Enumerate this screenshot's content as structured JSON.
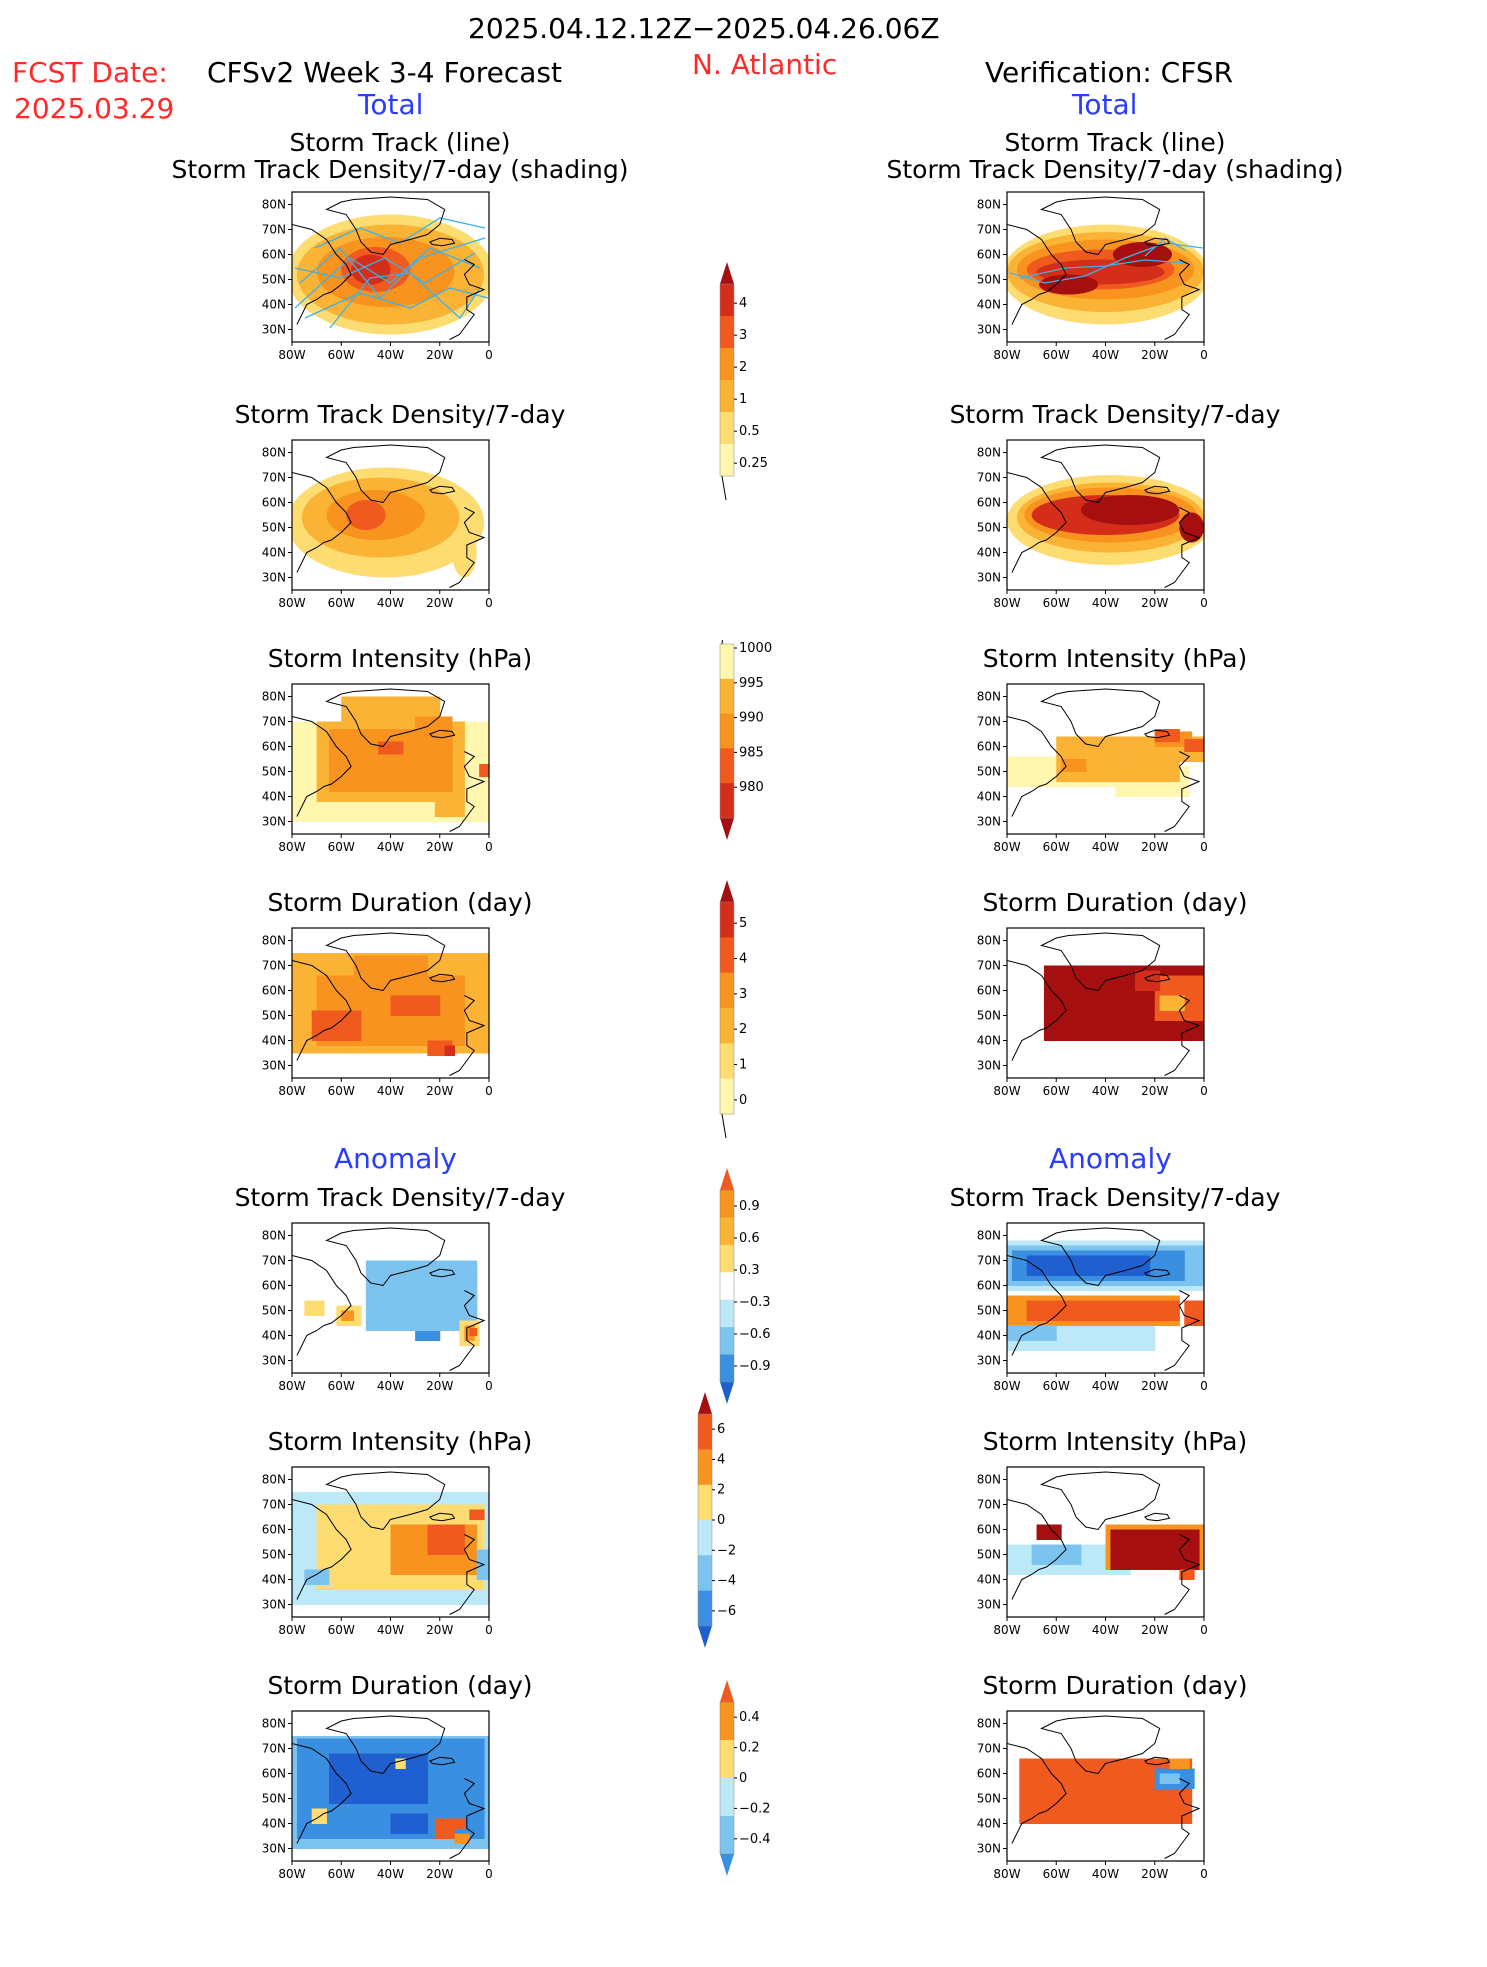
{
  "header": {
    "period": "2025.04.12.12Z−2025.04.26.06Z",
    "fcst_label": "FCST Date:",
    "fcst_date": "2025.03.29",
    "model_title": "CFSv2 Week 3-4 Forecast",
    "region": "N. Atlantic",
    "verification": "Verification: CFSR",
    "total_left": "Total",
    "total_right": "Total",
    "anomaly_left": "Anomaly",
    "anomaly_right": "Anomaly"
  },
  "titles": {
    "track_line": "Storm Track (line)",
    "track_shading": "Storm Track Density/7-day (shading)",
    "density": "Storm Track Density/7-day",
    "intensity": "Storm Intensity (hPa)",
    "duration": "Storm Duration (day)"
  },
  "axes": {
    "lat_ticks": [
      "80N",
      "70N",
      "60N",
      "50N",
      "40N",
      "30N"
    ],
    "lon_ticks": [
      "80W",
      "60W",
      "40W",
      "20W",
      "0"
    ]
  },
  "colors": {
    "cyan_track": "#3fb0e8",
    "yellow_light": "#fff7b0",
    "yellow": "#fddc72",
    "orange_light": "#fbb336",
    "orange": "#f7931e",
    "orange_red": "#f05a1e",
    "red": "#d42d1a",
    "dark_red": "#a50f0f",
    "blue_light": "#bde8f7",
    "blue_mid": "#7cc4ef",
    "blue": "#3a8fe0",
    "blue_dark": "#1f5fd0"
  },
  "chart_data": [
    {
      "type": "heatmap",
      "panel": "forecast-total-track-density-shading",
      "title": "Storm Track (line) / Storm Track Density/7-day (shading)",
      "xlabel": "",
      "ylabel": "",
      "xlim": [
        -80,
        0
      ],
      "ylim": [
        25,
        85
      ],
      "colorbar": {
        "levels": [
          0.25,
          0.5,
          1,
          2,
          3,
          4
        ]
      }
    },
    {
      "type": "heatmap",
      "panel": "verification-total-track-density-shading",
      "title": "Storm Track (line) / Storm Track Density/7-day (shading)",
      "xlabel": "",
      "ylabel": "",
      "xlim": [
        -80,
        0
      ],
      "ylim": [
        25,
        85
      ],
      "colorbar": {
        "levels": [
          0.25,
          0.5,
          1,
          2,
          3,
          4
        ]
      }
    },
    {
      "type": "heatmap",
      "panel": "forecast-total-density",
      "title": "Storm Track Density/7-day",
      "xlim": [
        -80,
        0
      ],
      "ylim": [
        25,
        85
      ]
    },
    {
      "type": "heatmap",
      "panel": "verification-total-density",
      "title": "Storm Track Density/7-day",
      "xlim": [
        -80,
        0
      ],
      "ylim": [
        25,
        85
      ]
    },
    {
      "type": "heatmap",
      "panel": "forecast-total-intensity",
      "title": "Storm Intensity (hPa)",
      "xlim": [
        -80,
        0
      ],
      "ylim": [
        25,
        85
      ],
      "colorbar": {
        "levels": [
          1000,
          995,
          990,
          985,
          980
        ]
      }
    },
    {
      "type": "heatmap",
      "panel": "verification-total-intensity",
      "title": "Storm Intensity (hPa)",
      "xlim": [
        -80,
        0
      ],
      "ylim": [
        25,
        85
      ],
      "colorbar": {
        "levels": [
          1000,
          995,
          990,
          985,
          980
        ]
      }
    },
    {
      "type": "heatmap",
      "panel": "forecast-total-duration",
      "title": "Storm Duration (day)",
      "xlim": [
        -80,
        0
      ],
      "ylim": [
        25,
        85
      ],
      "colorbar": {
        "levels": [
          0,
          1,
          2,
          3,
          4,
          5
        ]
      }
    },
    {
      "type": "heatmap",
      "panel": "verification-total-duration",
      "title": "Storm Duration (day)",
      "xlim": [
        -80,
        0
      ],
      "ylim": [
        25,
        85
      ],
      "colorbar": {
        "levels": [
          0,
          1,
          2,
          3,
          4,
          5
        ]
      }
    },
    {
      "type": "heatmap",
      "panel": "forecast-anomaly-density",
      "title": "Storm Track Density/7-day",
      "xlim": [
        -80,
        0
      ],
      "ylim": [
        25,
        85
      ],
      "colorbar": {
        "levels": [
          -0.9,
          -0.6,
          -0.3,
          0.3,
          0.6,
          0.9
        ]
      }
    },
    {
      "type": "heatmap",
      "panel": "verification-anomaly-density",
      "title": "Storm Track Density/7-day",
      "xlim": [
        -80,
        0
      ],
      "ylim": [
        25,
        85
      ],
      "colorbar": {
        "levels": [
          -0.9,
          -0.6,
          -0.3,
          0.3,
          0.6,
          0.9
        ]
      }
    },
    {
      "type": "heatmap",
      "panel": "forecast-anomaly-intensity",
      "title": "Storm Intensity (hPa)",
      "xlim": [
        -80,
        0
      ],
      "ylim": [
        25,
        85
      ],
      "colorbar": {
        "levels": [
          -6,
          -4,
          -2,
          0,
          2,
          4,
          6
        ]
      }
    },
    {
      "type": "heatmap",
      "panel": "verification-anomaly-intensity",
      "title": "Storm Intensity (hPa)",
      "xlim": [
        -80,
        0
      ],
      "ylim": [
        25,
        85
      ],
      "colorbar": {
        "levels": [
          -6,
          -4,
          -2,
          0,
          2,
          4,
          6
        ]
      }
    },
    {
      "type": "heatmap",
      "panel": "forecast-anomaly-duration",
      "title": "Storm Duration (day)",
      "xlim": [
        -80,
        0
      ],
      "ylim": [
        25,
        85
      ],
      "colorbar": {
        "levels": [
          -0.4,
          -0.2,
          0,
          0.2,
          0.4
        ]
      }
    },
    {
      "type": "heatmap",
      "panel": "verification-anomaly-duration",
      "title": "Storm Duration (day)",
      "xlim": [
        -80,
        0
      ],
      "ylim": [
        25,
        85
      ],
      "colorbar": {
        "levels": [
          -0.4,
          -0.2,
          0,
          0.2,
          0.4
        ]
      }
    }
  ],
  "colorbars": [
    {
      "name": "density",
      "labels": [
        "4",
        "3",
        "2",
        "1",
        "0.5",
        "0.25"
      ],
      "colors": [
        "#a50f0f",
        "#d42d1a",
        "#f05a1e",
        "#f7931e",
        "#fbb336",
        "#fddc72",
        "#fff7b0"
      ],
      "tri_top": true,
      "tri_bottom": false
    },
    {
      "name": "intensity",
      "labels": [
        "1000",
        "995",
        "990",
        "985",
        "980"
      ],
      "colors": [
        "#fff7b0",
        "#fbb336",
        "#f7931e",
        "#f05a1e",
        "#d42d1a",
        "#a50f0f"
      ],
      "tri_top": false,
      "tri_bottom": true
    },
    {
      "name": "duration",
      "labels": [
        "5",
        "4",
        "3",
        "2",
        "1",
        "0"
      ],
      "colors": [
        "#a50f0f",
        "#d42d1a",
        "#f05a1e",
        "#f7931e",
        "#fbb336",
        "#fddc72",
        "#fff7b0"
      ],
      "tri_top": true,
      "tri_bottom": false
    },
    {
      "name": "anom-density",
      "labels": [
        "0.9",
        "0.6",
        "0.3",
        "−0.3",
        "−0.6",
        "−0.9"
      ],
      "colors": [
        "#f05a1e",
        "#f7931e",
        "#fbb336",
        "#fddc72",
        "#ffffff",
        "#bde8f7",
        "#7cc4ef",
        "#3a8fe0",
        "#1f5fd0"
      ],
      "tri_top": true,
      "tri_bottom": true
    },
    {
      "name": "anom-intensity",
      "labels": [
        "6",
        "4",
        "2",
        "0",
        "−2",
        "−4",
        "−6"
      ],
      "colors": [
        "#a50f0f",
        "#f05a1e",
        "#f7931e",
        "#fddc72",
        "#bde8f7",
        "#7cc4ef",
        "#3a8fe0",
        "#1f5fd0"
      ],
      "tri_top": true,
      "tri_bottom": true
    },
    {
      "name": "anom-duration",
      "labels": [
        "0.4",
        "0.2",
        "0",
        "−0.2",
        "−0.4"
      ],
      "colors": [
        "#f05a1e",
        "#f7931e",
        "#fddc72",
        "#bde8f7",
        "#7cc4ef",
        "#3a8fe0"
      ],
      "tri_top": true,
      "tri_bottom": true
    }
  ]
}
